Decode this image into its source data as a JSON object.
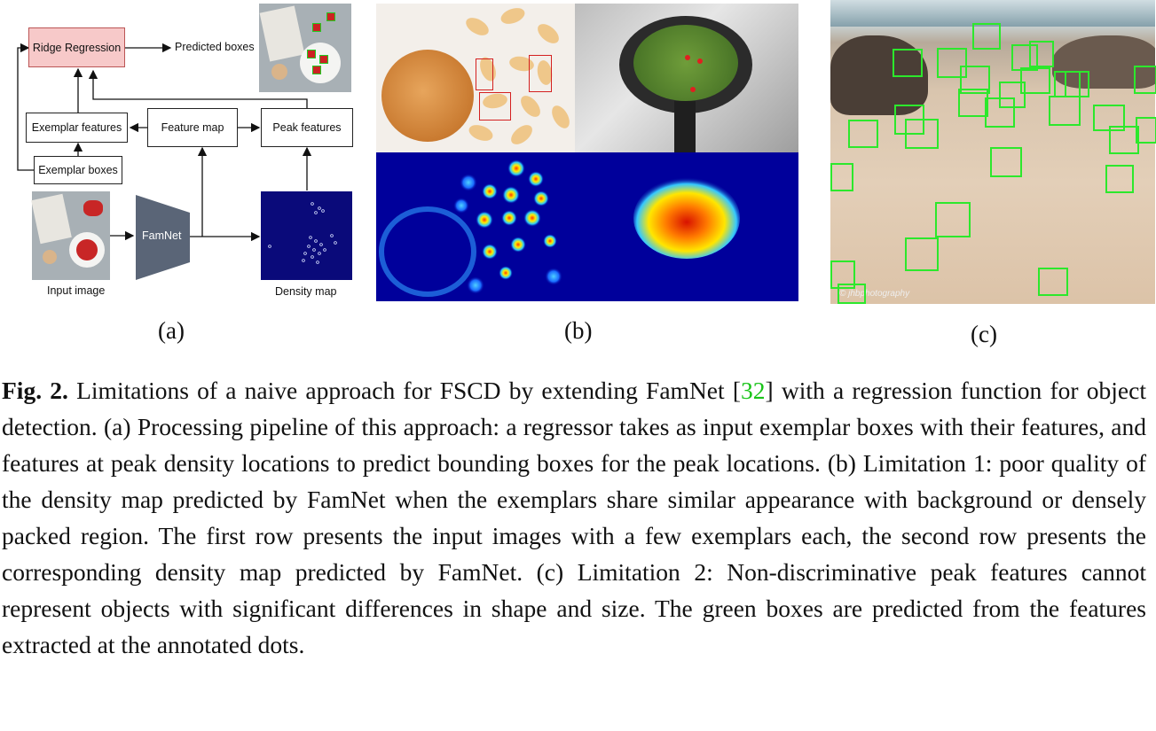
{
  "panel_a": {
    "ridge_regression": "Ridge Regression",
    "predicted_boxes": "Predicted boxes",
    "exemplar_features": "Exemplar features",
    "feature_map": "Feature map",
    "peak_features": "Peak features",
    "exemplar_boxes": "Exemplar boxes",
    "famnet": "FamNet",
    "input_image": "Input image",
    "density_map": "Density map",
    "label": "(a)"
  },
  "panel_b": {
    "label": "(b)"
  },
  "panel_c": {
    "label": "(c)",
    "watermark": "© jhbphotography"
  },
  "caption": {
    "fig_label": "Fig. 2.",
    "text_1": " Limitations of a naive approach for FSCD by extending FamNet [",
    "citation": "32",
    "text_2": "] with a regression function for object detection. (a) Processing pipeline of this approach: a regressor takes as input exemplar boxes with their features, and features at peak density locations to predict bounding boxes for the peak locations. (b) Limitation 1: poor quality of the density map predicted by FamNet when the exemplars share similar appearance with background or densely packed region. The first row presents the input images with a few exemplars each, the second row presents the corresponding density map predicted by FamNet. (c) Limitation 2: Non-discriminative peak features cannot represent objects with significant differences in shape and size. The green boxes are predicted from the features extracted at the annotated dots."
  }
}
